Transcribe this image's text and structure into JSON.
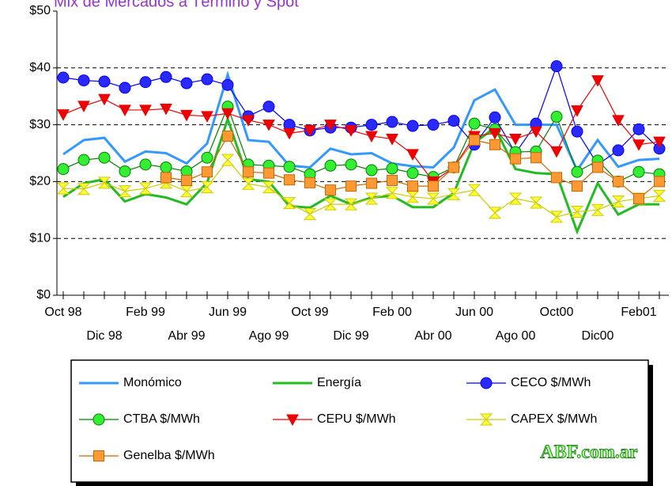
{
  "chart_data": {
    "type": "line",
    "title": "Mix de Mercados a Término y Spot",
    "logo": "ABF.com.ar",
    "categories": [
      "Oct 98",
      null,
      "Dic 98",
      null,
      "Feb 99",
      null,
      "Abr 99",
      null,
      "Jun 99",
      null,
      "Ago 99",
      null,
      "Oct 99",
      null,
      "Dic 99",
      null,
      "Feb 00",
      null,
      "Abr 00",
      null,
      "Jun 00",
      null,
      "Ago 00",
      null,
      "Oct00",
      null,
      "Dic00",
      null,
      "Feb01",
      null
    ],
    "ylim": [
      0,
      50
    ],
    "yticks": [
      {
        "value": 0,
        "label": "$0"
      },
      {
        "value": 10,
        "label": "$10"
      },
      {
        "value": 20,
        "label": "$20"
      },
      {
        "value": 30,
        "label": "$30"
      },
      {
        "value": 40,
        "label": "$40"
      },
      {
        "value": 50,
        "label": "$50"
      }
    ],
    "grid": true,
    "series": [
      {
        "name": "Monómico",
        "color": "#3399ff",
        "marker": "none",
        "values": [
          24.8,
          27.3,
          27.7,
          23.5,
          25.3,
          25.0,
          23.2,
          26.7,
          38.8,
          27.3,
          27.0,
          22.8,
          22.5,
          25.8,
          24.8,
          25.0,
          23.2,
          22.7,
          22.5,
          26.0,
          34.3,
          36.2,
          30.0,
          30.0,
          30.0,
          22.0,
          27.3,
          22.6,
          23.8,
          24.0
        ]
      },
      {
        "name": "Energía",
        "color": "#22bb22",
        "marker": "none",
        "values": [
          17.3,
          19.7,
          20.4,
          16.5,
          17.8,
          17.2,
          16.0,
          19.8,
          31.0,
          20.4,
          20.0,
          15.7,
          15.4,
          17.5,
          16.0,
          17.2,
          17.5,
          15.5,
          15.5,
          18.0,
          26.8,
          29.5,
          22.2,
          21.5,
          21.3,
          11.2,
          19.7,
          14.2,
          16.0,
          16.0
        ]
      },
      {
        "name": "CECO $/MWh",
        "color": "#0000ff",
        "marker": "circle",
        "fill": "#2a2aff",
        "values": [
          38.3,
          37.8,
          37.6,
          36.5,
          37.5,
          38.4,
          37.3,
          38.0,
          37.0,
          31.5,
          33.2,
          30.0,
          29.0,
          29.5,
          29.5,
          30.0,
          30.5,
          29.8,
          30.0,
          30.7,
          26.5,
          31.3,
          25.0,
          30.2,
          40.3,
          28.8,
          23.0,
          25.5,
          29.2,
          25.8
        ]
      },
      {
        "name": "CTBA $/MWh",
        "color": "#008000",
        "marker": "circle",
        "fill": "#33ee33",
        "values": [
          22.2,
          23.8,
          24.2,
          21.8,
          23.0,
          22.5,
          21.8,
          24.2,
          33.2,
          23.0,
          22.8,
          22.6,
          21.3,
          22.8,
          23.0,
          22.0,
          22.3,
          21.5,
          20.8,
          22.5,
          30.2,
          29.2,
          25.2,
          25.3,
          31.4,
          21.7,
          23.7,
          20.0,
          21.7,
          21.3
        ]
      },
      {
        "name": "CEPU $/MWh",
        "color": "#ee0000",
        "marker": "triangle",
        "fill": "#ee0000",
        "values": [
          31.8,
          33.3,
          34.5,
          32.6,
          32.6,
          32.8,
          31.7,
          31.5,
          32.0,
          30.8,
          30.0,
          28.5,
          29.0,
          30.0,
          29.0,
          28.0,
          27.5,
          24.8,
          20.0,
          22.5,
          28.0,
          28.5,
          27.5,
          28.8,
          25.3,
          32.5,
          37.8,
          30.8,
          26.5,
          27.0
        ]
      },
      {
        "name": "CAPEX $/MWh",
        "color": "#cccc00",
        "marker": "hourglass",
        "fill": "#ffff33",
        "values": [
          18.8,
          18.7,
          19.8,
          18.3,
          18.8,
          19.8,
          18.3,
          19.0,
          23.8,
          19.6,
          19.0,
          16.2,
          14.3,
          16.0,
          16.0,
          17.0,
          18.0,
          17.3,
          17.0,
          17.8,
          18.5,
          14.5,
          17.0,
          16.3,
          13.8,
          14.7,
          15.0,
          16.5,
          17.0,
          17.5
        ]
      },
      {
        "name": "Genelba $/MWh",
        "color": "#cc6600",
        "marker": "square",
        "fill": "#ff9933",
        "values": [
          null,
          null,
          null,
          null,
          null,
          20.7,
          20.2,
          21.7,
          28.0,
          21.7,
          21.5,
          20.3,
          19.8,
          18.5,
          19.2,
          19.7,
          20.2,
          19.2,
          19.2,
          22.5,
          27.3,
          26.5,
          24.0,
          24.2,
          20.7,
          19.2,
          22.5,
          20.0,
          17.0,
          20.0
        ]
      }
    ]
  }
}
